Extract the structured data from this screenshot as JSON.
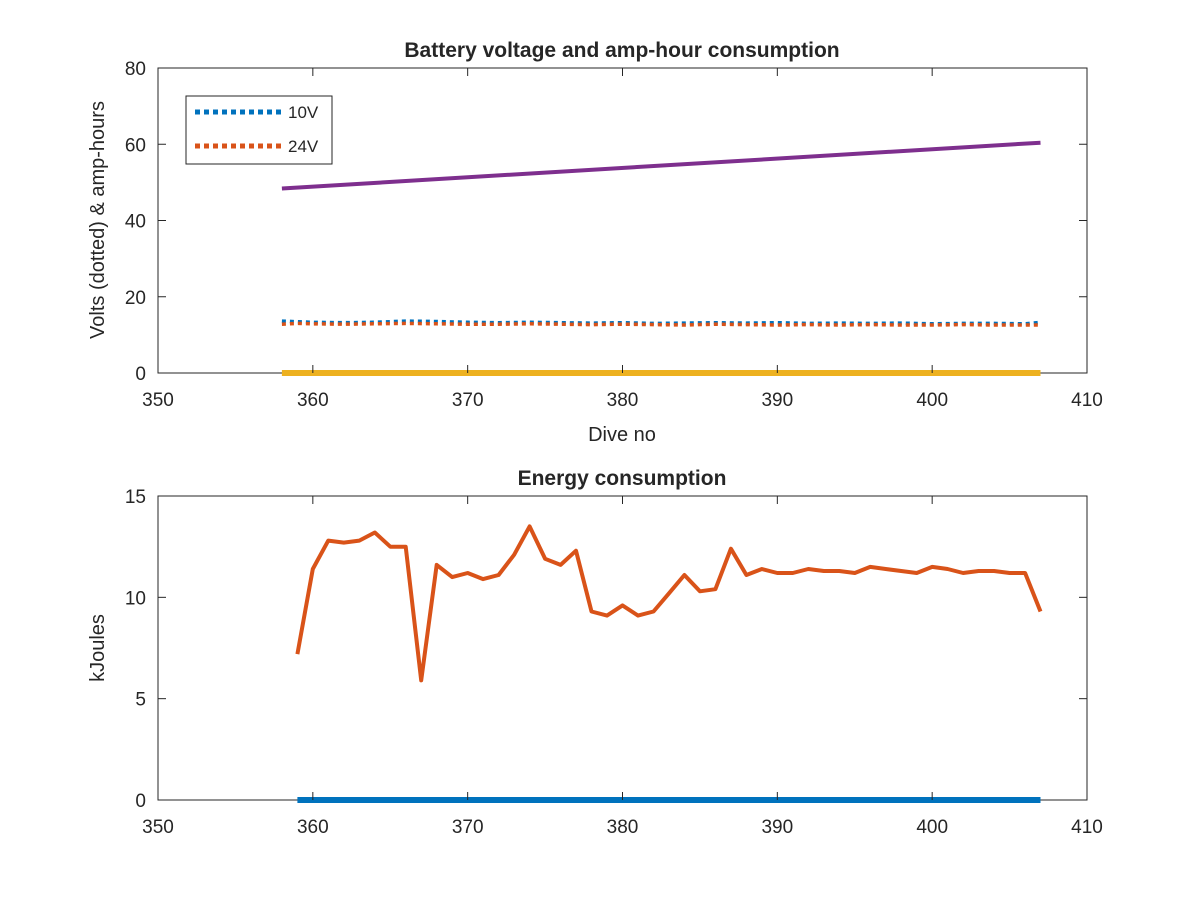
{
  "chart_data": [
    {
      "type": "line",
      "title": "Battery voltage and amp-hour consumption",
      "xlabel": "Dive no",
      "ylabel": "Volts (dotted) & amp-hours",
      "xlim": [
        350,
        410
      ],
      "ylim": [
        0,
        80
      ],
      "xticks": [
        350,
        360,
        370,
        380,
        390,
        400,
        410
      ],
      "yticks": [
        0,
        20,
        40,
        60,
        80
      ],
      "legend_position": "top-left",
      "grid": false,
      "series": [
        {
          "name": "10V",
          "style": "dotted",
          "color": "#0072BD",
          "x": [
            358,
            360,
            362,
            364,
            366,
            368,
            370,
            372,
            374,
            376,
            378,
            380,
            382,
            384,
            386,
            388,
            390,
            392,
            394,
            396,
            398,
            400,
            402,
            404,
            406,
            407
          ],
          "y": [
            13.6,
            13.3,
            13.2,
            13.3,
            13.6,
            13.5,
            13.3,
            13.2,
            13.3,
            13.2,
            13.1,
            13.2,
            13.0,
            13.1,
            13.2,
            13.1,
            13.2,
            13.0,
            13.1,
            13.0,
            13.1,
            12.9,
            13.0,
            13.0,
            12.9,
            13.3
          ]
        },
        {
          "name": "24V",
          "style": "dotted",
          "color": "#D95319",
          "x": [
            358,
            359,
            360,
            362,
            364,
            366,
            368,
            370,
            372,
            374,
            376,
            378,
            380,
            382,
            384,
            386,
            388,
            390,
            392,
            394,
            396,
            398,
            400,
            402,
            404,
            406,
            407
          ],
          "y": [
            12.8,
            13.0,
            12.9,
            12.8,
            12.9,
            13.0,
            12.9,
            12.8,
            12.8,
            12.9,
            12.8,
            12.7,
            12.8,
            12.7,
            12.6,
            12.8,
            12.7,
            12.6,
            12.7,
            12.6,
            12.7,
            12.6,
            12.6,
            12.7,
            12.6,
            12.6,
            12.6
          ]
        },
        {
          "name": "",
          "style": "solid",
          "color": "#7E2F8E",
          "x": [
            358,
            407
          ],
          "y": [
            48.4,
            60.4
          ]
        },
        {
          "name": "",
          "style": "solid",
          "color": "#EDB120",
          "x": [
            358,
            407
          ],
          "y": [
            0,
            0
          ]
        }
      ]
    },
    {
      "type": "line",
      "title": "Energy consumption",
      "xlabel": "",
      "ylabel": "kJoules",
      "xlim": [
        350,
        410
      ],
      "ylim": [
        0,
        15
      ],
      "xticks": [
        350,
        360,
        370,
        380,
        390,
        400,
        410
      ],
      "yticks": [
        0,
        5,
        10,
        15
      ],
      "grid": false,
      "series": [
        {
          "name": "",
          "style": "solid",
          "color": "#0072BD",
          "x": [
            359,
            407
          ],
          "y": [
            0,
            0
          ]
        },
        {
          "name": "",
          "style": "solid",
          "color": "#D95319",
          "x": [
            359,
            360,
            361,
            362,
            363,
            364,
            365,
            366,
            367,
            368,
            369,
            370,
            371,
            372,
            373,
            374,
            375,
            376,
            377,
            378,
            379,
            380,
            381,
            382,
            383,
            384,
            385,
            386,
            387,
            388,
            389,
            390,
            391,
            392,
            393,
            394,
            395,
            396,
            397,
            398,
            399,
            400,
            401,
            402,
            403,
            404,
            405,
            406,
            407
          ],
          "y": [
            7.2,
            11.4,
            12.8,
            12.7,
            12.8,
            13.2,
            12.5,
            12.5,
            5.9,
            11.6,
            11.0,
            11.2,
            10.9,
            11.1,
            12.1,
            13.5,
            11.9,
            11.6,
            12.3,
            9.3,
            9.1,
            9.6,
            9.1,
            9.3,
            10.2,
            11.1,
            10.3,
            10.4,
            12.4,
            11.1,
            11.4,
            11.2,
            11.2,
            11.4,
            11.3,
            11.3,
            11.2,
            11.5,
            11.4,
            11.3,
            11.2,
            11.5,
            11.4,
            11.2,
            11.3,
            11.3,
            11.2,
            11.2,
            9.3
          ]
        }
      ]
    }
  ]
}
